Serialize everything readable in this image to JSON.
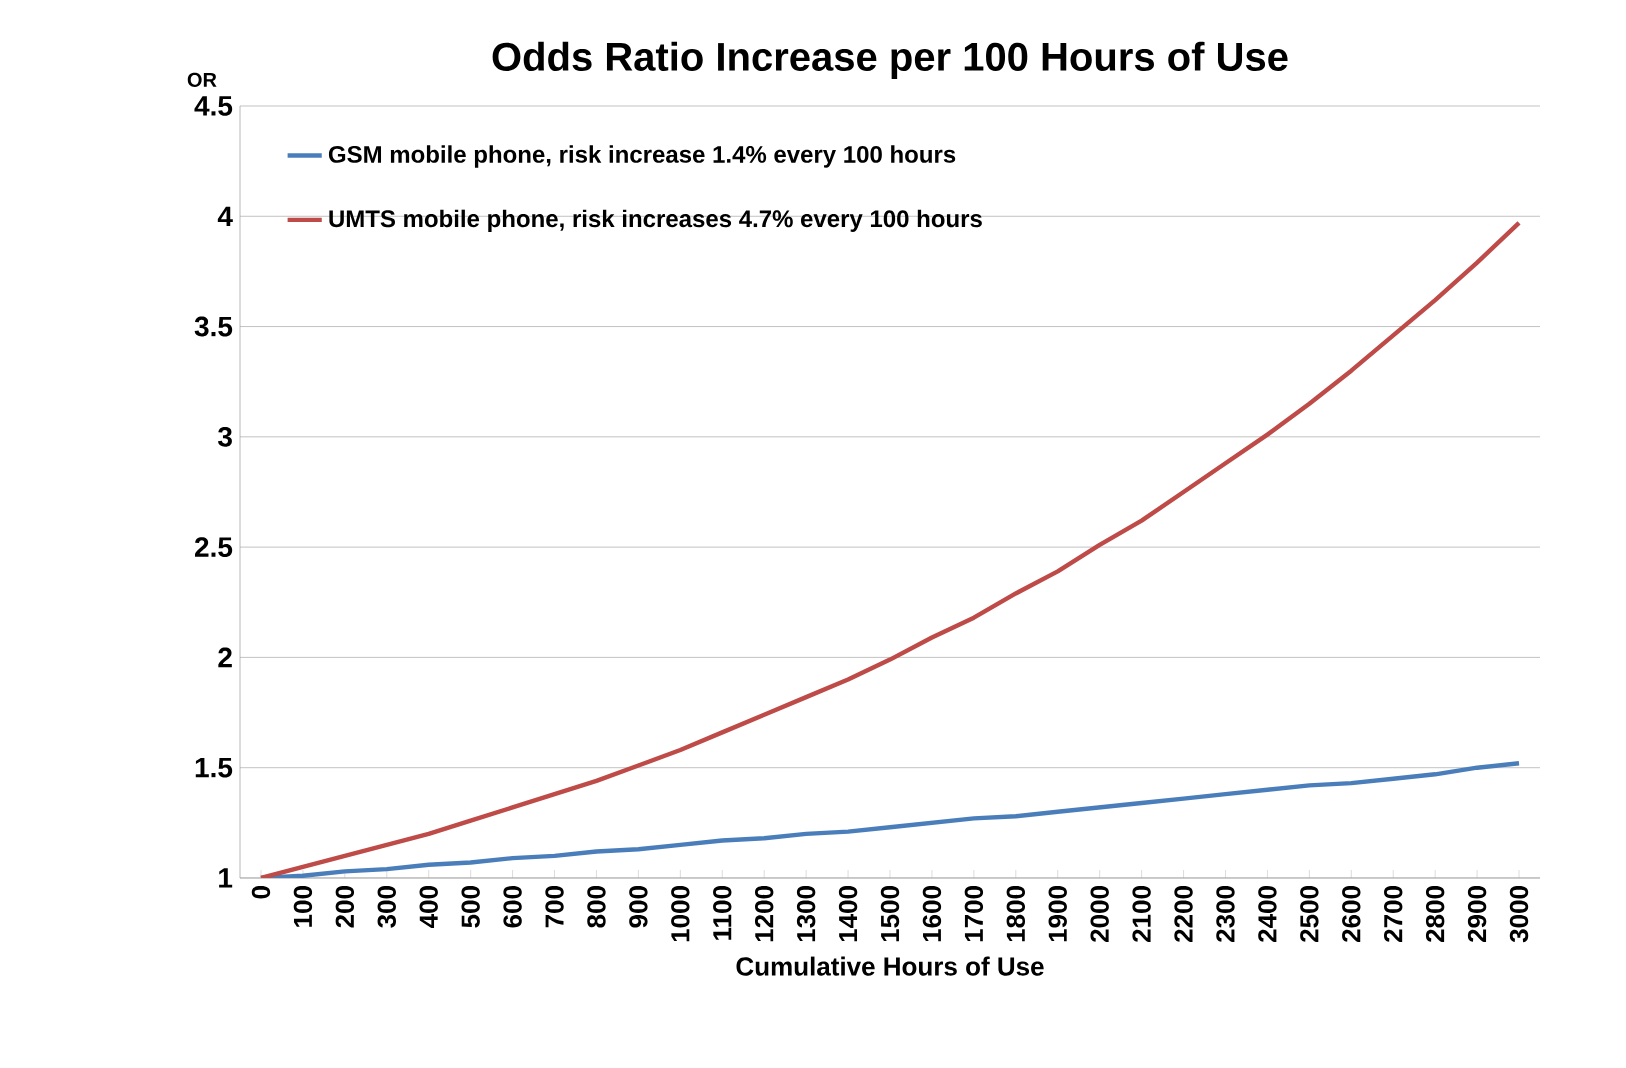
{
  "chart_data": {
    "type": "line",
    "title": "Odds Ratio Increase per 100 Hours of Use",
    "xlabel": "Cumulative Hours of Use",
    "ylabel": "OR",
    "categories": [
      "0",
      "100",
      "200",
      "300",
      "400",
      "500",
      "600",
      "700",
      "800",
      "900",
      "1000",
      "1100",
      "1200",
      "1300",
      "1400",
      "1500",
      "1600",
      "1700",
      "1800",
      "1900",
      "2000",
      "2100",
      "2200",
      "2300",
      "2400",
      "2500",
      "2600",
      "2700",
      "2800",
      "2900",
      "3000"
    ],
    "series": [
      {
        "name": "GSM mobile phone, risk increase 1.4% every 100 hours",
        "color": "#4a7ebb",
        "values": [
          1,
          1.01,
          1.03,
          1.04,
          1.06,
          1.07,
          1.09,
          1.1,
          1.12,
          1.13,
          1.15,
          1.17,
          1.18,
          1.2,
          1.21,
          1.23,
          1.25,
          1.27,
          1.28,
          1.3,
          1.32,
          1.34,
          1.36,
          1.38,
          1.4,
          1.42,
          1.43,
          1.45,
          1.47,
          1.5,
          1.52
        ]
      },
      {
        "name": "UMTS mobile phone, risk increases 4.7% every 100 hours",
        "color": "#be4b48",
        "values": [
          1,
          1.05,
          1.1,
          1.15,
          1.2,
          1.26,
          1.32,
          1.38,
          1.44,
          1.51,
          1.58,
          1.66,
          1.74,
          1.82,
          1.9,
          1.99,
          2.09,
          2.18,
          2.29,
          2.39,
          2.51,
          2.62,
          2.75,
          2.88,
          3.01,
          3.15,
          3.3,
          3.46,
          3.62,
          3.79,
          3.97
        ]
      }
    ],
    "ylim": [
      1,
      4.5
    ],
    "yticks": [
      1,
      1.5,
      2,
      2.5,
      3,
      3.5,
      4,
      4.5
    ],
    "grid": "y",
    "legend": "top left",
    "marker": "none",
    "line_style": "solid"
  }
}
